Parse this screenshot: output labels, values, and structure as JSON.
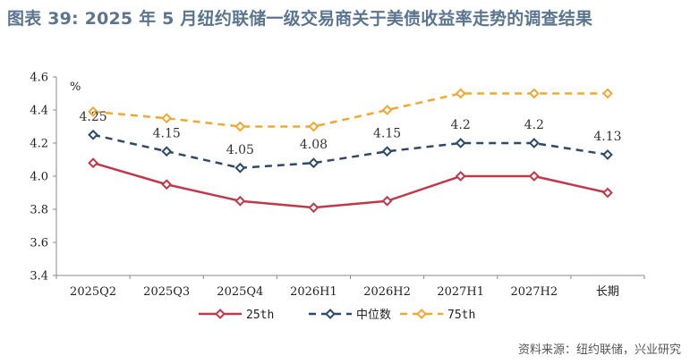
{
  "title": "图表 39: 2025 年 5 月纽约联储一级交易商关于美债收益率走势的调查结果",
  "source": "资料来源：纽约联储，兴业研究",
  "chart_data": {
    "type": "line",
    "categories": [
      "2025Q2",
      "2025Q3",
      "2025Q4",
      "2026H1",
      "2026H2",
      "2027H1",
      "2027H2",
      "长期"
    ],
    "unit": "%",
    "ylim": [
      3.4,
      4.6
    ],
    "yticks": [
      "3.4",
      "3.6",
      "3.8",
      "4.0",
      "4.2",
      "4.4",
      "4.6"
    ],
    "grid": false,
    "legend_position": "bottom",
    "series": [
      {
        "name": "25th",
        "values": [
          4.08,
          3.95,
          3.85,
          3.81,
          3.85,
          4.0,
          4.0,
          3.9
        ],
        "color": "#c0394b",
        "dash": "solid",
        "labels": false
      },
      {
        "name": "中位数",
        "values": [
          4.25,
          4.15,
          4.05,
          4.08,
          4.15,
          4.2,
          4.2,
          4.13
        ],
        "color": "#2e4a6b",
        "dash": "dash",
        "labels": true,
        "label_text": [
          "4.25",
          "4.15",
          "4.05",
          "4.08",
          "4.15",
          "4.2",
          "4.2",
          "4.13"
        ]
      },
      {
        "name": "75th",
        "values": [
          4.39,
          4.35,
          4.3,
          4.3,
          4.4,
          4.5,
          4.5,
          4.5
        ],
        "color": "#f0a830",
        "dash": "dash",
        "labels": false
      }
    ]
  }
}
